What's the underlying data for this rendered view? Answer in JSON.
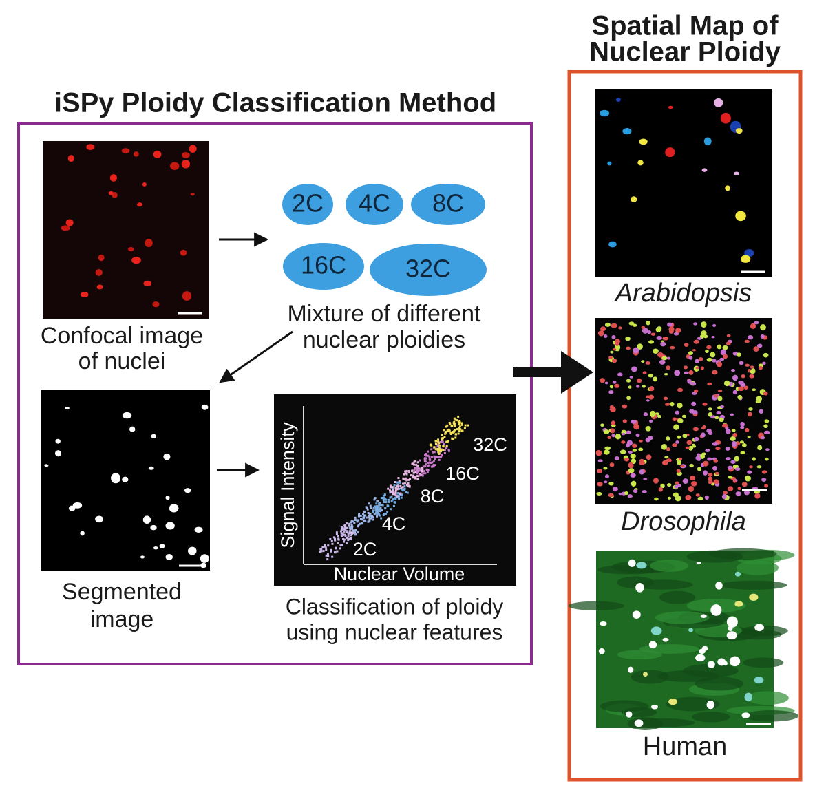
{
  "method": {
    "title": "iSPy Ploidy Classification Method",
    "confocal_caption": [
      "Confocal image",
      "of nuclei"
    ],
    "mixture_caption": [
      "Mixture of different",
      "nuclear ploidies"
    ],
    "segmented_caption": [
      "Segmented",
      "image"
    ],
    "classification_caption": [
      "Classification of ploidy",
      "using nuclear features"
    ],
    "ploidies": [
      "2C",
      "4C",
      "8C",
      "16C",
      "32C"
    ],
    "plot": {
      "y_label": "Signal Intensity",
      "x_label": "Nuclear Volume",
      "classes": [
        "2C",
        "4C",
        "8C",
        "16C",
        "32C"
      ]
    }
  },
  "spatial_map": {
    "title": [
      "Spatial Map of",
      "Nuclear Ploidy"
    ],
    "species": [
      "Arabidopsis",
      "Drosophila",
      "Human"
    ]
  }
}
